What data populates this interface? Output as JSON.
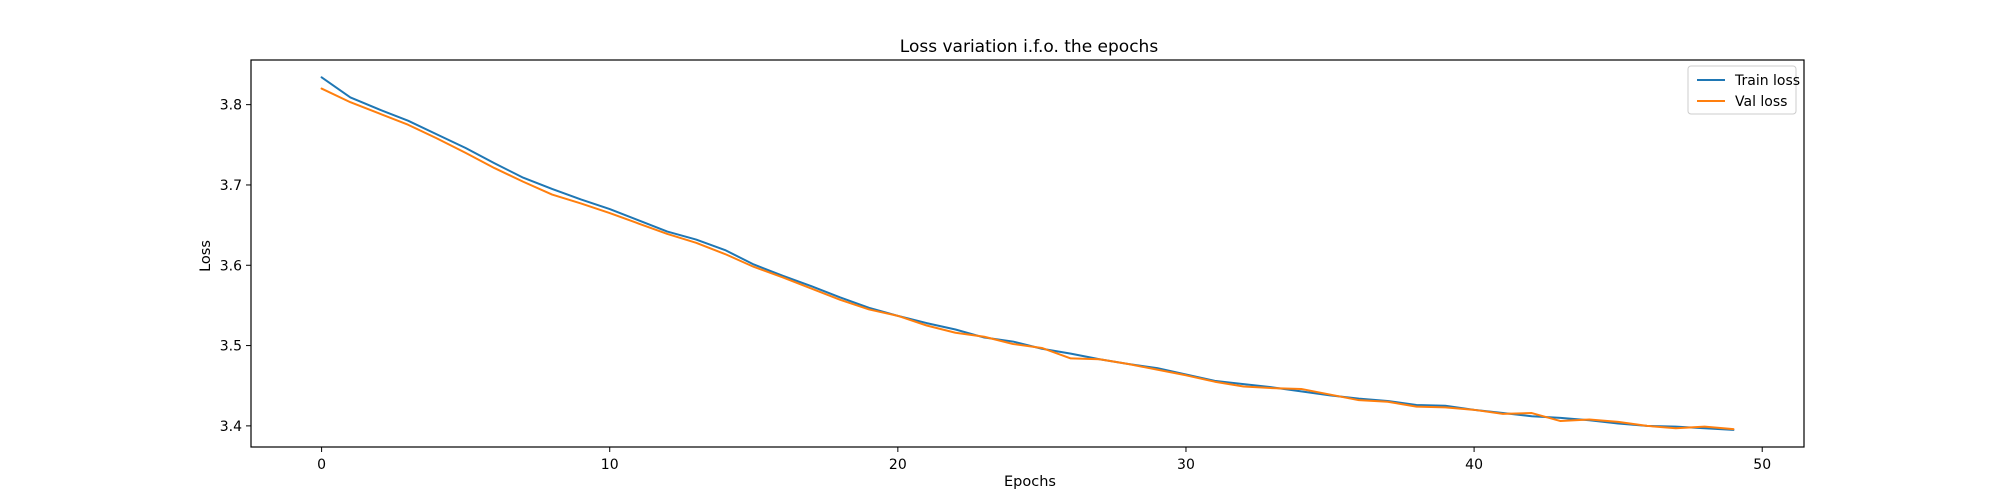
{
  "chart_data": {
    "type": "line",
    "title": "Loss variation i.f.o. the epochs",
    "xlabel": "Epochs",
    "ylabel": "Loss",
    "xlim": [
      -2.45,
      51.45
    ],
    "ylim": [
      3.3737,
      3.8556
    ],
    "xticks": [
      0,
      10,
      20,
      30,
      40,
      50
    ],
    "yticks": [
      3.4,
      3.5,
      3.6,
      3.7,
      3.8
    ],
    "grid": false,
    "legend": {
      "placement": "top-right",
      "entries": [
        "Train loss",
        "Val loss"
      ]
    },
    "x": [
      0,
      1,
      2,
      3,
      4,
      5,
      6,
      7,
      8,
      9,
      10,
      11,
      12,
      13,
      14,
      15,
      16,
      17,
      18,
      19,
      20,
      21,
      22,
      23,
      24,
      25,
      26,
      27,
      28,
      29,
      30,
      31,
      32,
      33,
      34,
      35,
      36,
      37,
      38,
      39,
      40,
      41,
      42,
      43,
      44,
      45,
      46,
      47,
      48,
      49
    ],
    "series": [
      {
        "name": "Train loss",
        "color": "#1f77b4",
        "values": [
          3.834,
          3.809,
          3.794,
          3.78,
          3.763,
          3.746,
          3.727,
          3.709,
          3.695,
          3.682,
          3.67,
          3.656,
          3.642,
          3.632,
          3.619,
          3.601,
          3.587,
          3.574,
          3.56,
          3.547,
          3.537,
          3.528,
          3.52,
          3.51,
          3.505,
          3.496,
          3.49,
          3.483,
          3.477,
          3.472,
          3.464,
          3.456,
          3.452,
          3.448,
          3.443,
          3.438,
          3.434,
          3.431,
          3.426,
          3.425,
          3.42,
          3.416,
          3.412,
          3.41,
          3.407,
          3.403,
          3.4,
          3.399,
          3.397,
          3.395
        ]
      },
      {
        "name": "Val loss",
        "color": "#ff7f0e",
        "values": [
          3.82,
          3.803,
          3.789,
          3.775,
          3.758,
          3.74,
          3.721,
          3.704,
          3.688,
          3.677,
          3.665,
          3.652,
          3.639,
          3.628,
          3.614,
          3.598,
          3.585,
          3.571,
          3.557,
          3.545,
          3.537,
          3.525,
          3.516,
          3.511,
          3.502,
          3.497,
          3.484,
          3.483,
          3.477,
          3.47,
          3.463,
          3.455,
          3.449,
          3.447,
          3.446,
          3.439,
          3.432,
          3.43,
          3.424,
          3.423,
          3.42,
          3.415,
          3.416,
          3.406,
          3.408,
          3.405,
          3.4,
          3.397,
          3.399,
          3.396
        ]
      }
    ]
  }
}
